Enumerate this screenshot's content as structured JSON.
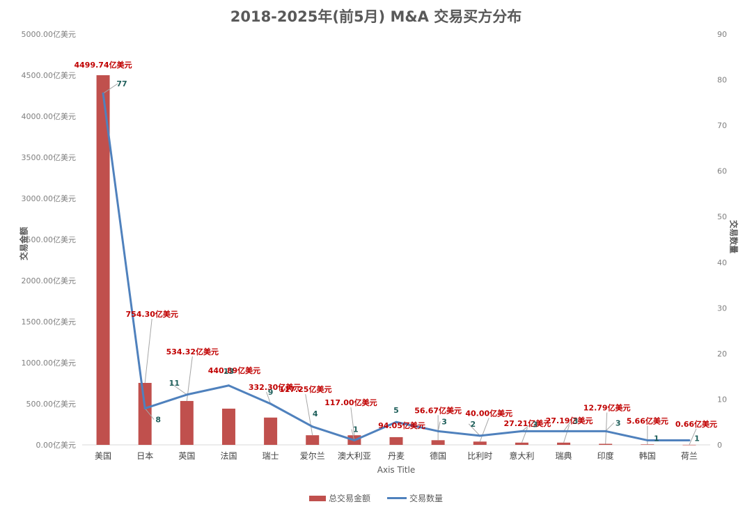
{
  "chart_data": {
    "type": "bar",
    "title": "2018-2025年(前5月) M&A 交易买方分布",
    "xlabel": "Axis Title",
    "ylabel": "交易金额",
    "y2label": "交易数量",
    "ylim": [
      0,
      5000
    ],
    "y2lim": [
      0,
      90
    ],
    "yticks": [
      "0.00亿美元",
      "500.00亿美元",
      "1000.00亿美元",
      "1500.00亿美元",
      "2000.00亿美元",
      "2500.00亿美元",
      "3000.00亿美元",
      "3500.00亿美元",
      "4000.00亿美元",
      "4500.00亿美元",
      "5000.00亿美元"
    ],
    "y2ticks": [
      "0",
      "10",
      "20",
      "30",
      "40",
      "50",
      "60",
      "70",
      "80",
      "90"
    ],
    "categories": [
      "美国",
      "日本",
      "英国",
      "法国",
      "瑞士",
      "爱尔兰",
      "澳大利亚",
      "丹麦",
      "德国",
      "比利时",
      "意大利",
      "瑞典",
      "印度",
      "韩国",
      "荷兰"
    ],
    "series": [
      {
        "name": "总交易金额",
        "type": "bar",
        "color": "#c0504d",
        "values": [
          4499.74,
          754.3,
          534.32,
          440.89,
          332.3,
          117.25,
          117.0,
          94.05,
          56.67,
          40.0,
          27.21,
          27.19,
          12.79,
          5.66,
          0.66
        ],
        "labels": [
          "4499.74亿美元",
          "754.30亿美元",
          "534.32亿美元",
          "440.89亿美元",
          "332.30亿美元",
          "117.25亿美元",
          "117.00亿美元",
          "94.05亿美元",
          "56.67亿美元",
          "40.00亿美元",
          "27.21亿美元",
          "27.19亿美元",
          "12.79亿美元",
          "5.66亿美元",
          "0.66亿美元"
        ]
      },
      {
        "name": "交易数量",
        "type": "line",
        "axis": "right",
        "color": "#4f81bd",
        "values": [
          77,
          8,
          11,
          13,
          9,
          4,
          1,
          5,
          3,
          2,
          3,
          3,
          3,
          1,
          1
        ],
        "labels": [
          "77",
          "8",
          "11",
          "13",
          "9",
          "4",
          "1",
          "5",
          "3",
          "2",
          "3",
          "3",
          "3",
          "1",
          "1"
        ]
      }
    ],
    "legend": "bottom"
  }
}
